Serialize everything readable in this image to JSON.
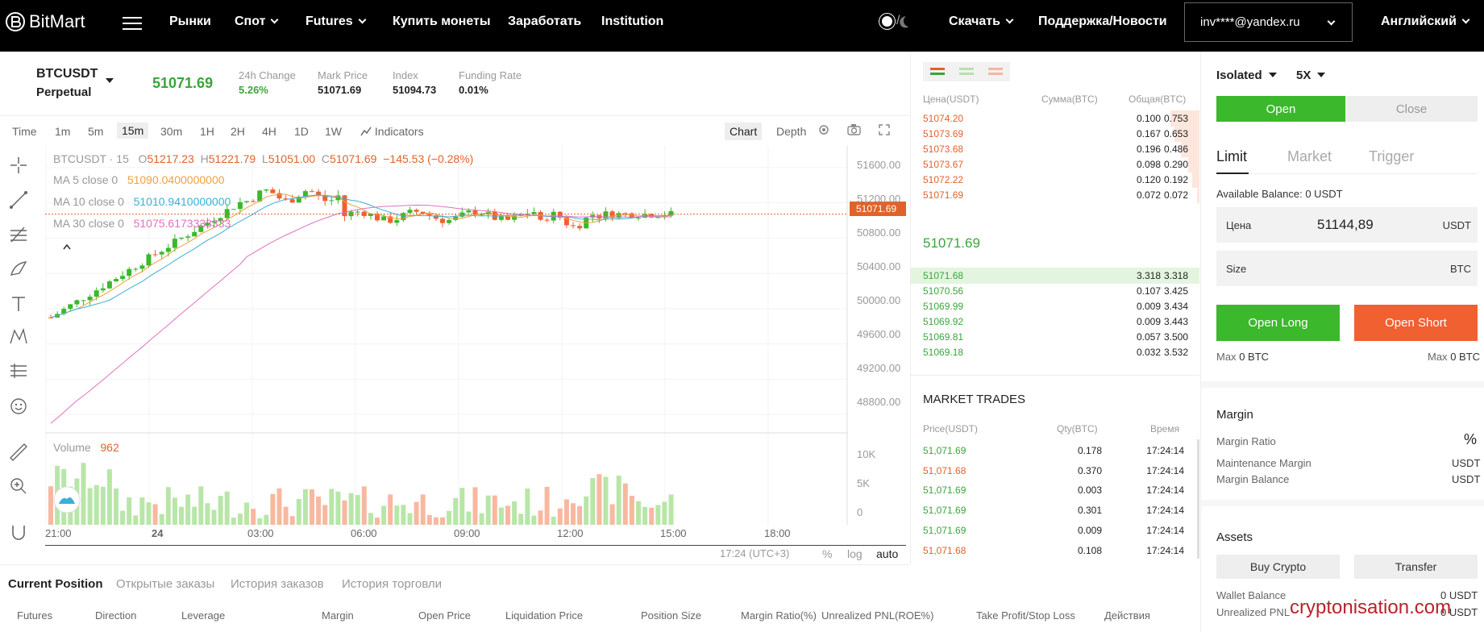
{
  "header": {
    "logo": "BitMart",
    "nav": [
      "Рынки",
      "Спот",
      "Futures",
      "Купить монеты",
      "Заработать",
      "Institution"
    ],
    "download": "Скачать",
    "support": "Поддержка/Новости",
    "user": "inv****@yandex.ru",
    "language": "Английский"
  },
  "ticker": {
    "symbol": "BTCUSDT",
    "type": "Perpetual",
    "last": "51071.69",
    "stats": [
      {
        "label": "24h Change",
        "value": "5.26%"
      },
      {
        "label": "Mark Price",
        "value": "51071.69"
      },
      {
        "label": "Index",
        "value": "51094.73"
      },
      {
        "label": "Funding Rate",
        "value": "0.01%"
      }
    ]
  },
  "chart_toolbar": {
    "intervals": [
      "Time",
      "1m",
      "5m",
      "15m",
      "30m",
      "1H",
      "2H",
      "4H",
      "1D",
      "1W"
    ],
    "selected": "15m",
    "indicators": "Indicators",
    "chart": "Chart",
    "depth": "Depth"
  },
  "chart_text": {
    "title": "BTCUSDT · 15",
    "ohlc": {
      "o_label": "O",
      "o": "51217.23",
      "h_label": "H",
      "h": "51221.79",
      "l_label": "L",
      "l": "51051.00",
      "c_label": "C",
      "c": "51071.69",
      "chg": "−145.53 (−0.28%)"
    },
    "ma5": {
      "label": "MA 5 close 0",
      "value": "51090.0400000000",
      "color": "#f0a040"
    },
    "ma10": {
      "label": "MA 10 close 0",
      "value": "51010.9410000000",
      "color": "#3ab0d8"
    },
    "ma30": {
      "label": "MA 30 close 0",
      "value": "51075.6173333333",
      "color": "#e070c0"
    },
    "price_tag": "51071.69",
    "yaxis": [
      "51600.00",
      "51200.00",
      "50800.00",
      "50400.00",
      "50000.00",
      "49600.00",
      "49200.00",
      "48800.00"
    ],
    "vol_axis": [
      "10K",
      "5K",
      "0"
    ],
    "xaxis": [
      "21:00",
      "24",
      "03:00",
      "06:00",
      "09:00",
      "12:00",
      "15:00",
      "18:00"
    ],
    "volume_label": "Volume",
    "volume_value": "962",
    "time_zone": "17:24 (UTC+3)",
    "scale_pct": "%",
    "scale_log": "log",
    "scale_auto": "auto"
  },
  "chart_data": {
    "type": "candlestick",
    "x": [
      "21:00",
      "24",
      "03:00",
      "06:00",
      "09:00",
      "12:00",
      "15:00",
      "18:00"
    ],
    "ylim": [
      48600,
      51800
    ],
    "yticks": [
      51600,
      51200,
      50800,
      50400,
      50000,
      49600,
      49200,
      48800
    ],
    "series": [
      {
        "name": "MA 5 close 0",
        "last": 51090.04
      },
      {
        "name": "MA 10 close 0",
        "last": 51010.941
      },
      {
        "name": "MA 30 close 0",
        "last": 51075.6173333333
      }
    ],
    "last_close": 51071.69,
    "volume_axis": [
      10000,
      5000,
      0
    ]
  },
  "bottom_tabs": [
    "Current Position",
    "Открытые заказы",
    "История заказов",
    "История торговли"
  ],
  "position_columns": [
    "Futures",
    "Direction",
    "Leverage",
    "Margin",
    "Open Price",
    "Liquidation Price",
    "Position Size",
    "Margin Ratio(%)",
    "Unrealized PNL(ROE%)",
    "Take Profit/Stop Loss",
    "Действия"
  ],
  "orderbook": {
    "headers": [
      "Цена(USDT)",
      "Сумма(BTC)",
      "Общая(BTC)"
    ],
    "asks": [
      {
        "p": "51074.20",
        "q": "0.100",
        "t": "0.753"
      },
      {
        "p": "51073.69",
        "q": "0.167",
        "t": "0.653"
      },
      {
        "p": "51073.68",
        "q": "0.196",
        "t": "0.486"
      },
      {
        "p": "51073.67",
        "q": "0.098",
        "t": "0.290"
      },
      {
        "p": "51072.22",
        "q": "0.120",
        "t": "0.192"
      },
      {
        "p": "51071.69",
        "q": "0.072",
        "t": "0.072"
      }
    ],
    "mid": "51071.69",
    "bids": [
      {
        "p": "51071.68",
        "q": "3.318",
        "t": "3.318"
      },
      {
        "p": "51070.56",
        "q": "0.107",
        "t": "3.425"
      },
      {
        "p": "51069.99",
        "q": "0.009",
        "t": "3.434"
      },
      {
        "p": "51069.92",
        "q": "0.009",
        "t": "3.443"
      },
      {
        "p": "51069.81",
        "q": "0.057",
        "t": "3.500"
      },
      {
        "p": "51069.18",
        "q": "0.032",
        "t": "3.532"
      }
    ]
  },
  "market_trades": {
    "title": "MARKET TRADES",
    "headers": [
      "Price(USDT)",
      "Qty(BTC)",
      "Время"
    ],
    "rows": [
      {
        "p": "51,071.69",
        "q": "0.178",
        "t": "17:24:14",
        "side": "buy"
      },
      {
        "p": "51,071.68",
        "q": "0.370",
        "t": "17:24:14",
        "side": "sell"
      },
      {
        "p": "51,071.69",
        "q": "0.003",
        "t": "17:24:14",
        "side": "buy"
      },
      {
        "p": "51,071.69",
        "q": "0.301",
        "t": "17:24:14",
        "side": "buy"
      },
      {
        "p": "51,071.69",
        "q": "0.009",
        "t": "17:24:14",
        "side": "buy"
      },
      {
        "p": "51,071.68",
        "q": "0.108",
        "t": "17:24:14",
        "side": "sell"
      }
    ]
  },
  "trade_panel": {
    "margin_mode": "Isolated",
    "leverage": "5X",
    "open": "Open",
    "close": "Close",
    "order_types": [
      "Limit",
      "Market",
      "Trigger"
    ],
    "available_balance": "Available Balance: 0 USDT",
    "price_label": "Цена",
    "price_value": "51144,89",
    "price_unit": "USDT",
    "size_label": "Size",
    "size_unit": "BTC",
    "open_long": "Open Long",
    "open_short": "Open Short",
    "max_long_label": "Max",
    "max_long_value": "0 BTC",
    "max_short_label": "Max",
    "max_short_value": "0 BTC",
    "margin_title": "Margin",
    "margin_ratio": "Margin Ratio",
    "margin_ratio_value": "%",
    "maintenance_margin": "Maintenance Margin",
    "maintenance_value": "USDT",
    "margin_balance": "Margin Balance",
    "margin_balance_value": "USDT",
    "assets_title": "Assets",
    "buy_crypto": "Buy Crypto",
    "transfer": "Transfer",
    "wallet_balance": "Wallet Balance",
    "wallet_value": "0 USDT",
    "unrealized_pnl": "Unrealized PNL",
    "unrealized_value": "0 USDT"
  },
  "watermark": "cryptonisation.com",
  "colors": {
    "green": "#3aa53a",
    "red": "#e0622a",
    "accent_green": "#3cb82c",
    "short_orange": "#f06030"
  }
}
